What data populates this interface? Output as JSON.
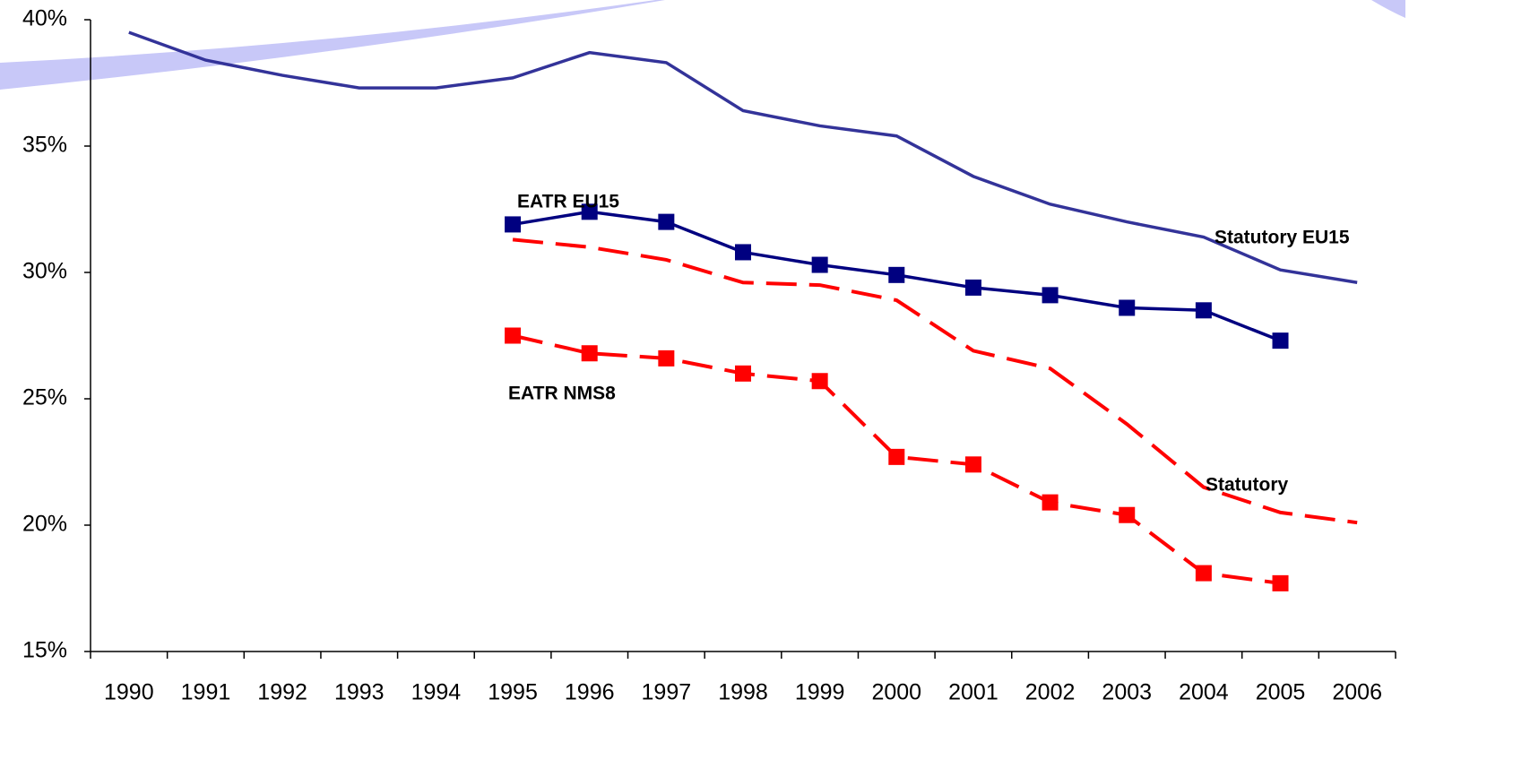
{
  "chart_data": {
    "type": "line",
    "categories": [
      "1990",
      "1991",
      "1992",
      "1993",
      "1994",
      "1995",
      "1996",
      "1997",
      "1998",
      "1999",
      "2000",
      "2001",
      "2002",
      "2003",
      "2004",
      "2005",
      "2006"
    ],
    "ylim": [
      15,
      40
    ],
    "yticks": [
      {
        "value": 15,
        "label": "15%"
      },
      {
        "value": 20,
        "label": "20%"
      },
      {
        "value": 25,
        "label": "25%"
      },
      {
        "value": 30,
        "label": "30%"
      },
      {
        "value": 35,
        "label": "35%"
      },
      {
        "value": 40,
        "label": "40%"
      }
    ],
    "grid": false,
    "series": [
      {
        "name": "Statutory EU15",
        "color": "#333399",
        "dashed": false,
        "marker": "none",
        "values": [
          39.5,
          38.4,
          37.8,
          37.3,
          37.3,
          37.7,
          38.7,
          38.3,
          36.4,
          35.8,
          35.4,
          33.8,
          32.7,
          32.0,
          31.4,
          30.1,
          29.6
        ]
      },
      {
        "name": "EATR EU15",
        "color": "#000080",
        "dashed": false,
        "marker": "square",
        "values": [
          null,
          null,
          null,
          null,
          null,
          31.9,
          32.4,
          32.0,
          30.8,
          30.3,
          29.9,
          29.4,
          29.1,
          28.6,
          28.5,
          27.3,
          null
        ]
      },
      {
        "name": "Statutory",
        "color": "#ff0000",
        "dashed": true,
        "marker": "none",
        "values": [
          null,
          null,
          null,
          null,
          null,
          31.3,
          31.0,
          30.5,
          29.6,
          29.5,
          28.9,
          26.9,
          26.2,
          24.0,
          21.5,
          20.5,
          20.1
        ]
      },
      {
        "name": "EATR NMS8",
        "color": "#ff0000",
        "dashed": true,
        "marker": "square",
        "values": [
          null,
          null,
          null,
          null,
          null,
          27.5,
          26.8,
          26.6,
          26.0,
          25.7,
          22.7,
          22.4,
          20.9,
          20.4,
          18.1,
          17.7,
          null
        ]
      }
    ]
  }
}
